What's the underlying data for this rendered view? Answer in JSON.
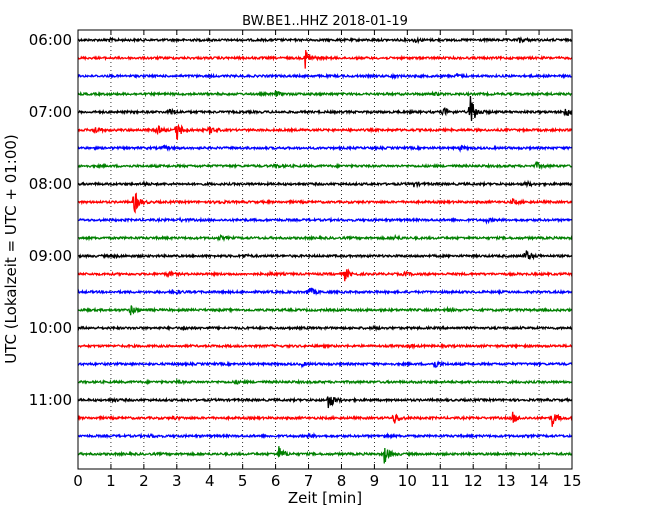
{
  "chart_data": {
    "type": "line",
    "title": "BW.BE1..HHZ 2018-01-19",
    "xlabel": "Zeit  [min]",
    "ylabel": "UTC (Lokalzeit = UTC + 01:00)",
    "xlim": [
      0,
      15
    ],
    "xticks": [
      0,
      1,
      2,
      3,
      4,
      5,
      6,
      7,
      8,
      9,
      10,
      11,
      12,
      13,
      14,
      15
    ],
    "xtick_labels": [
      "0",
      "1",
      "2",
      "3",
      "4",
      "5",
      "6",
      "7",
      "8",
      "9",
      "10",
      "11",
      "12",
      "13",
      "14",
      "15"
    ],
    "ytick_labels": [
      "06:00",
      "07:00",
      "08:00",
      "09:00",
      "10:00",
      "11:00"
    ],
    "ytick_rows": [
      0,
      4,
      8,
      12,
      16,
      20
    ],
    "grid": "vertical dotted",
    "trace_colors": [
      "#000000",
      "#ff0000",
      "#0000ff",
      "#008000"
    ],
    "series": [
      {
        "start": "06:00",
        "events": [
          {
            "t": 0.9,
            "a": 0.2
          },
          {
            "t": 10.2,
            "a": 0.3
          },
          {
            "t": 13.4,
            "a": 0.35
          }
        ]
      },
      {
        "start": "06:15",
        "events": [
          {
            "t": 6.9,
            "a": 1.2
          }
        ]
      },
      {
        "start": "06:30",
        "events": [
          {
            "t": 9.5,
            "a": 0.15
          },
          {
            "t": 11.5,
            "a": 0.2
          }
        ]
      },
      {
        "start": "06:45",
        "events": [
          {
            "t": 6.0,
            "a": 0.3
          },
          {
            "t": 10.8,
            "a": 0.15
          }
        ]
      },
      {
        "start": "07:00",
        "events": [
          {
            "t": 2.8,
            "a": 0.35
          },
          {
            "t": 11.1,
            "a": 0.5
          },
          {
            "t": 11.9,
            "a": 2.2
          },
          {
            "t": 14.8,
            "a": 0.7
          }
        ]
      },
      {
        "start": "07:15",
        "events": [
          {
            "t": 0.5,
            "a": 0.4
          },
          {
            "t": 2.4,
            "a": 0.5
          },
          {
            "t": 3.0,
            "a": 1.2
          },
          {
            "t": 4.0,
            "a": 0.4
          }
        ]
      },
      {
        "start": "07:30",
        "events": [
          {
            "t": 2.6,
            "a": 0.2
          },
          {
            "t": 11.6,
            "a": 0.2
          }
        ]
      },
      {
        "start": "07:45",
        "events": [
          {
            "t": 6.0,
            "a": 0.25
          },
          {
            "t": 13.9,
            "a": 0.45
          }
        ]
      },
      {
        "start": "08:00",
        "events": [
          {
            "t": 2.0,
            "a": 0.15
          },
          {
            "t": 10.2,
            "a": 0.25
          },
          {
            "t": 13.6,
            "a": 0.3
          }
        ]
      },
      {
        "start": "08:15",
        "events": [
          {
            "t": 1.7,
            "a": 1.5
          },
          {
            "t": 4.2,
            "a": 0.25
          },
          {
            "t": 13.2,
            "a": 0.3
          }
        ]
      },
      {
        "start": "08:30",
        "events": [
          {
            "t": 3.1,
            "a": 0.15
          },
          {
            "t": 12.4,
            "a": 0.2
          }
        ]
      },
      {
        "start": "08:45",
        "events": [
          {
            "t": 4.3,
            "a": 0.2
          },
          {
            "t": 9.6,
            "a": 0.25
          }
        ]
      },
      {
        "start": "09:00",
        "events": [
          {
            "t": 1.1,
            "a": 0.15
          },
          {
            "t": 5.0,
            "a": 0.2
          },
          {
            "t": 13.6,
            "a": 0.8
          }
        ]
      },
      {
        "start": "09:15",
        "events": [
          {
            "t": 2.7,
            "a": 0.35
          },
          {
            "t": 5.8,
            "a": 0.15
          },
          {
            "t": 8.1,
            "a": 0.7
          },
          {
            "t": 9.9,
            "a": 0.25
          }
        ]
      },
      {
        "start": "09:30",
        "events": [
          {
            "t": 2.9,
            "a": 0.4
          },
          {
            "t": 7.0,
            "a": 0.7
          }
        ]
      },
      {
        "start": "09:45",
        "events": [
          {
            "t": 1.6,
            "a": 0.6
          },
          {
            "t": 11.2,
            "a": 0.15
          }
        ]
      },
      {
        "start": "10:00",
        "events": [
          {
            "t": 3.2,
            "a": 0.2
          },
          {
            "t": 9.0,
            "a": 0.15
          }
        ]
      },
      {
        "start": "10:15",
        "events": [
          {
            "t": 10.0,
            "a": 0.15
          }
        ]
      },
      {
        "start": "10:30",
        "events": [
          {
            "t": 6.8,
            "a": 0.2
          },
          {
            "t": 10.8,
            "a": 0.55
          }
        ]
      },
      {
        "start": "10:45",
        "events": [
          {
            "t": 3.0,
            "a": 0.15
          },
          {
            "t": 4.8,
            "a": 0.15
          }
        ]
      },
      {
        "start": "11:00",
        "events": [
          {
            "t": 1.0,
            "a": 0.2
          },
          {
            "t": 7.6,
            "a": 1.2
          }
        ]
      },
      {
        "start": "11:15",
        "events": [
          {
            "t": 2.9,
            "a": 0.15
          },
          {
            "t": 9.6,
            "a": 0.7
          },
          {
            "t": 13.2,
            "a": 0.6
          },
          {
            "t": 14.4,
            "a": 0.9
          }
        ]
      },
      {
        "start": "11:30",
        "events": [
          {
            "t": 2.2,
            "a": 0.15
          },
          {
            "t": 7.0,
            "a": 0.25
          },
          {
            "t": 9.3,
            "a": 0.2
          }
        ]
      },
      {
        "start": "11:45",
        "events": [
          {
            "t": 6.1,
            "a": 0.8
          },
          {
            "t": 9.3,
            "a": 1.1
          }
        ]
      }
    ]
  }
}
